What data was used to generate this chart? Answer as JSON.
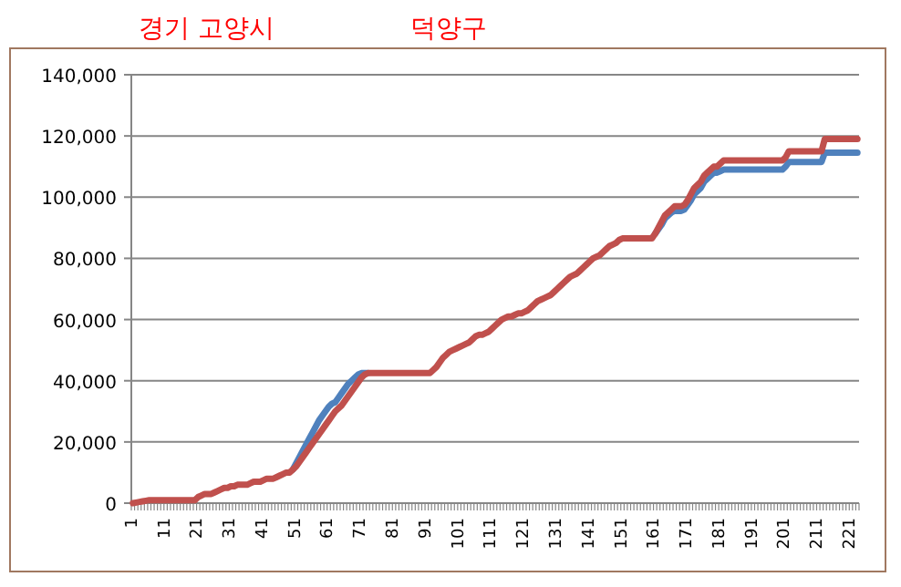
{
  "chart_data": {
    "type": "line",
    "title": "경기 고양시",
    "subtitle": "덕양구",
    "categories": [
      "1",
      null,
      null,
      null,
      null,
      null,
      null,
      null,
      null,
      null,
      "11",
      null,
      null,
      null,
      null,
      null,
      null,
      null,
      null,
      null,
      "21",
      null,
      null,
      null,
      null,
      null,
      null,
      null,
      null,
      null,
      "31",
      null,
      null,
      null,
      null,
      null,
      null,
      null,
      null,
      null,
      "41",
      null,
      null,
      null,
      null,
      null,
      null,
      null,
      null,
      null,
      "51",
      null,
      null,
      null,
      null,
      null,
      null,
      null,
      null,
      null,
      "61",
      null,
      null,
      null,
      null,
      null,
      null,
      null,
      null,
      null,
      "71",
      null,
      null,
      null,
      null,
      null,
      null,
      null,
      null,
      null,
      "81",
      null,
      null,
      null,
      null,
      null,
      null,
      null,
      null,
      null,
      "91",
      null,
      null,
      null,
      null,
      null,
      null,
      null,
      null,
      null,
      "101",
      null,
      null,
      null,
      null,
      null,
      null,
      null,
      null,
      null,
      "111",
      null,
      null,
      null,
      null,
      null,
      null,
      null,
      null,
      null,
      "121",
      null,
      null,
      null,
      null,
      null,
      null,
      null,
      null,
      null,
      "131",
      null,
      null,
      null,
      null,
      null,
      null,
      null,
      null,
      null,
      "141",
      null,
      null,
      null,
      null,
      null,
      null,
      null,
      null,
      null,
      "151",
      null,
      null,
      null,
      null,
      null,
      null,
      null,
      null,
      null,
      "161",
      null,
      null,
      null,
      null,
      null,
      null,
      null,
      null,
      null,
      "171",
      null,
      null,
      null,
      null,
      null,
      null,
      null,
      null,
      null,
      "181",
      null,
      null,
      null,
      null,
      null,
      null,
      null,
      null,
      null,
      "191",
      null,
      null,
      null,
      null,
      null,
      null,
      null,
      null,
      null,
      "201",
      null,
      null,
      null,
      null,
      null,
      null,
      null,
      null,
      null,
      "211",
      null,
      null,
      null,
      null,
      null,
      null,
      null,
      null,
      null,
      "221",
      null,
      null
    ],
    "series": [
      {
        "color": "#4f81bd",
        "values": [
          null,
          null,
          null,
          null,
          null,
          null,
          null,
          null,
          null,
          null,
          null,
          null,
          null,
          null,
          null,
          null,
          null,
          null,
          null,
          null,
          null,
          null,
          null,
          null,
          null,
          null,
          null,
          null,
          null,
          null,
          null,
          null,
          null,
          null,
          null,
          null,
          null,
          null,
          null,
          null,
          null,
          null,
          null,
          null,
          null,
          null,
          null,
          null,
          null,
          11000,
          13000,
          15000,
          17000,
          19000,
          21000,
          23000,
          25000,
          27000,
          28500,
          30000,
          31500,
          32500,
          33000,
          34500,
          36000,
          37500,
          39000,
          40000,
          41000,
          42000,
          42500,
          42500,
          42500,
          null,
          null,
          null,
          null,
          null,
          null,
          null,
          null,
          null,
          null,
          null,
          null,
          null,
          null,
          null,
          null,
          null,
          null,
          null,
          null,
          null,
          null,
          null,
          null,
          null,
          null,
          null,
          null,
          null,
          null,
          null,
          null,
          null,
          null,
          null,
          null,
          null,
          null,
          null,
          null,
          null,
          null,
          null,
          null,
          null,
          null,
          null,
          null,
          null,
          null,
          null,
          null,
          null,
          null,
          null,
          null,
          null,
          null,
          null,
          null,
          null,
          null,
          null,
          null,
          null,
          null,
          null,
          null,
          null,
          null,
          null,
          null,
          null,
          null,
          null,
          null,
          null,
          null,
          null,
          null,
          null,
          null,
          null,
          null,
          null,
          null,
          null,
          88000,
          89500,
          91000,
          93000,
          94000,
          95000,
          95500,
          95500,
          95500,
          96000,
          97500,
          99000,
          101000,
          102000,
          103000,
          105000,
          106000,
          107000,
          108000,
          108000,
          108500,
          109000,
          109000,
          109000,
          109000,
          109000,
          109000,
          109000,
          109000,
          109000,
          109000,
          109000,
          109000,
          109000,
          109000,
          109000,
          109000,
          109000,
          109000,
          109000,
          110000,
          111500,
          111500,
          111500,
          111500,
          111500,
          111500,
          111500,
          111500,
          111500,
          111500,
          111500,
          114500,
          114500,
          114500,
          114500,
          114500,
          114500,
          114500,
          114500,
          114500,
          114500,
          114500
        ]
      },
      {
        "color": "#c0504d",
        "values": [
          0,
          200,
          400,
          600,
          800,
          1000,
          1000,
          1000,
          1000,
          1000,
          1000,
          1000,
          1000,
          1000,
          1000,
          1000,
          1000,
          1000,
          1000,
          1000,
          2000,
          2500,
          3000,
          3000,
          3000,
          3500,
          4000,
          4500,
          5000,
          5000,
          5500,
          5500,
          6000,
          6000,
          6000,
          6000,
          6500,
          7000,
          7000,
          7000,
          7500,
          8000,
          8000,
          8000,
          8500,
          9000,
          9500,
          10000,
          10000,
          11000,
          12000,
          13500,
          15000,
          16500,
          18000,
          19500,
          21000,
          22500,
          24000,
          25500,
          27000,
          28500,
          30000,
          31000,
          32000,
          33500,
          35000,
          36500,
          38000,
          39500,
          41000,
          42000,
          42500,
          42500,
          42500,
          42500,
          42500,
          42500,
          42500,
          42500,
          42500,
          42500,
          42500,
          42500,
          42500,
          42500,
          42500,
          42500,
          42500,
          42500,
          42500,
          42500,
          43500,
          44500,
          46000,
          47500,
          48500,
          49500,
          50000,
          50500,
          51000,
          51500,
          52000,
          52500,
          53500,
          54500,
          55000,
          55000,
          55500,
          56000,
          57000,
          58000,
          59000,
          60000,
          60500,
          61000,
          61000,
          61500,
          62000,
          62000,
          62500,
          63000,
          64000,
          65000,
          66000,
          66500,
          67000,
          67500,
          68000,
          69000,
          70000,
          71000,
          72000,
          73000,
          74000,
          74500,
          75000,
          76000,
          77000,
          78000,
          79000,
          80000,
          80500,
          81000,
          82000,
          83000,
          84000,
          84500,
          85000,
          86000,
          86500,
          86500,
          86500,
          86500,
          86500,
          86500,
          86500,
          86500,
          86500,
          86500,
          88000,
          90000,
          92000,
          94000,
          95000,
          96000,
          97000,
          97000,
          97000,
          97500,
          99000,
          101000,
          103000,
          104000,
          105000,
          107000,
          108000,
          109000,
          110000,
          110000,
          111000,
          112000,
          112000,
          112000,
          112000,
          112000,
          112000,
          112000,
          112000,
          112000,
          112000,
          112000,
          112000,
          112000,
          112000,
          112000,
          112000,
          112000,
          112000,
          112000,
          113000,
          115000,
          115000,
          115000,
          115000,
          115000,
          115000,
          115000,
          115000,
          115000,
          115000,
          115000,
          119000,
          119000,
          119000,
          119000,
          119000,
          119000,
          119000,
          119000,
          119000,
          119000,
          119000
        ]
      }
    ],
    "ylim": [
      0,
      140000
    ],
    "yticks": [
      {
        "value": 0,
        "label": "0"
      },
      {
        "value": 20000,
        "label": "20,000"
      },
      {
        "value": 40000,
        "label": "40,000"
      },
      {
        "value": 60000,
        "label": "60,000"
      },
      {
        "value": 80000,
        "label": "80,000"
      },
      {
        "value": 100000,
        "label": "100,000"
      },
      {
        "value": 120000,
        "label": "120,000"
      },
      {
        "value": 140000,
        "label": "140,000"
      }
    ],
    "grid": "y",
    "marker": "none",
    "line_style": "solid"
  }
}
